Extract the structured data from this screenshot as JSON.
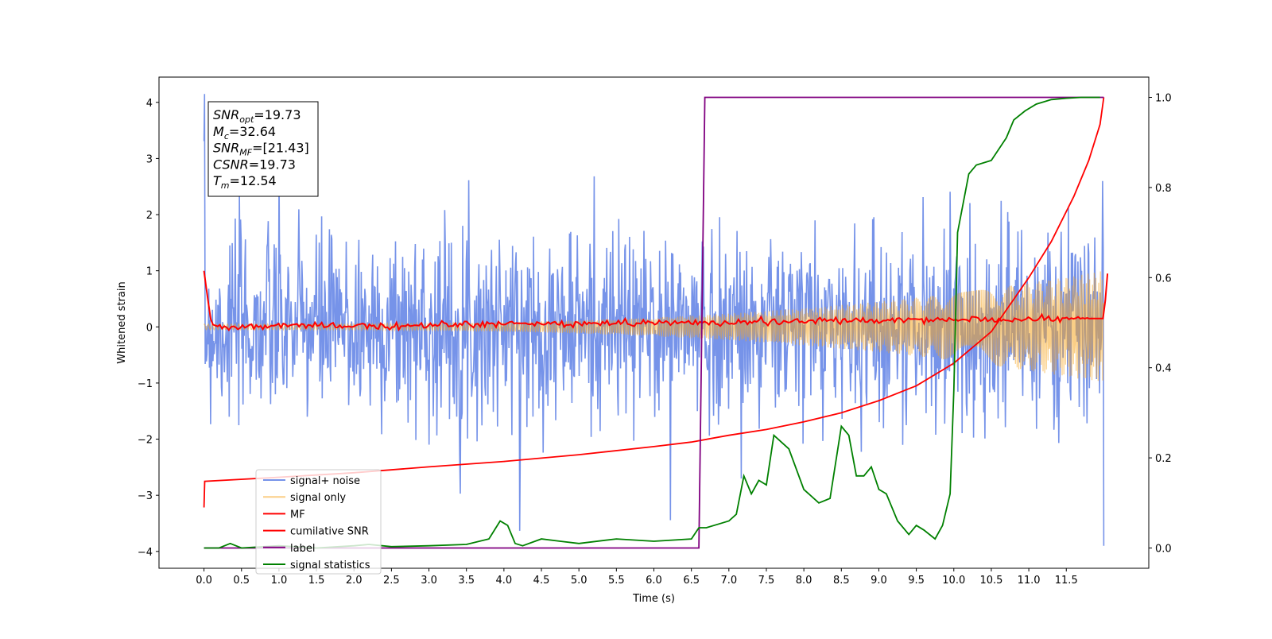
{
  "chart_data": {
    "type": "line",
    "xlabel": "Time (s)",
    "ylabel": "Whitened strain",
    "xlim": [
      -0.6,
      12.6
    ],
    "ylim": [
      -4.3,
      4.45
    ],
    "y2lim": [
      -0.045,
      1.045
    ],
    "x_ticks": [
      "0.0",
      "0.5",
      "1.0",
      "1.5",
      "2.0",
      "2.5",
      "3.0",
      "3.5",
      "4.0",
      "4.5",
      "5.0",
      "5.5",
      "6.0",
      "6.5",
      "7.0",
      "7.5",
      "8.0",
      "8.5",
      "9.0",
      "9.5",
      "10.0",
      "10.5",
      "11.0",
      "11.5"
    ],
    "y_ticks": [
      "−4",
      "−3",
      "−2",
      "−1",
      "0",
      "1",
      "2",
      "3",
      "4"
    ],
    "y2_ticks": [
      "0.0",
      "0.2",
      "0.4",
      "0.6",
      "0.8",
      "1.0"
    ],
    "annotation": [
      {
        "base": "SNR",
        "sub": "opt",
        "value": "=19.73"
      },
      {
        "base": "M",
        "sub": "c",
        "value": "=32.64"
      },
      {
        "base": "SNR",
        "sub": "MF",
        "value": "=[21.43]"
      },
      {
        "base": "CSNR",
        "sub": "",
        "value": "=19.73"
      },
      {
        "base": "T",
        "sub": "m",
        "value": "=12.54"
      }
    ],
    "series": [
      {
        "name": "signal+ noise",
        "color": "#4169e1",
        "axis": "left",
        "sigma": 0.85,
        "x_range": [
          0,
          12
        ]
      },
      {
        "name": "signal only",
        "color": "#f5a623",
        "axis": "left",
        "amplitude_start": 0.05,
        "amplitude_end": 1.0,
        "x_range": [
          0,
          12
        ]
      },
      {
        "name": "MF",
        "color": "#ff0000",
        "axis": "left",
        "x": [
          0.0,
          0.05,
          0.1,
          0.2,
          12.0,
          12.05
        ],
        "y": [
          1.0,
          0.5,
          0.05,
          0.0,
          0.15,
          0.95
        ]
      },
      {
        "name": "cumilative SNR",
        "color": "#ff0000",
        "axis": "right",
        "x": [
          0.0,
          0.01,
          1.0,
          2.0,
          3.0,
          4.0,
          5.0,
          6.0,
          6.5,
          7.0,
          7.5,
          8.0,
          8.5,
          9.0,
          9.5,
          10.0,
          10.5,
          11.0,
          11.3,
          11.6,
          11.8,
          11.95,
          12.0
        ],
        "y": [
          0.09,
          0.148,
          0.157,
          0.167,
          0.18,
          0.192,
          0.207,
          0.225,
          0.235,
          0.25,
          0.263,
          0.28,
          0.3,
          0.327,
          0.36,
          0.41,
          0.48,
          0.6,
          0.68,
          0.78,
          0.86,
          0.94,
          1.0
        ]
      },
      {
        "name": "label",
        "color": "#800080",
        "axis": "right",
        "x": [
          0.0,
          6.6,
          6.68,
          12.0
        ],
        "y": [
          0.0,
          0.0,
          1.0,
          1.0
        ]
      },
      {
        "name": "signal statistics",
        "color": "#008000",
        "axis": "right",
        "x": [
          0.0,
          0.2,
          0.35,
          0.5,
          1.0,
          1.5,
          2.0,
          2.2,
          2.5,
          3.0,
          3.5,
          3.8,
          3.95,
          4.05,
          4.15,
          4.25,
          4.5,
          4.75,
          5.0,
          5.5,
          6.0,
          6.5,
          6.6,
          6.7,
          6.9,
          7.0,
          7.1,
          7.2,
          7.3,
          7.4,
          7.5,
          7.6,
          7.8,
          8.0,
          8.2,
          8.35,
          8.5,
          8.6,
          8.7,
          8.8,
          8.9,
          9.0,
          9.1,
          9.25,
          9.4,
          9.5,
          9.6,
          9.75,
          9.85,
          9.95,
          10.0,
          10.05,
          10.2,
          10.3,
          10.5,
          10.7,
          10.8,
          10.95,
          11.1,
          11.3,
          11.5,
          11.7,
          11.95
        ],
        "y": [
          0.0,
          0.0,
          0.01,
          0.0,
          0.005,
          0.0,
          0.005,
          0.008,
          0.003,
          0.005,
          0.008,
          0.02,
          0.06,
          0.05,
          0.01,
          0.005,
          0.02,
          0.015,
          0.01,
          0.02,
          0.015,
          0.02,
          0.045,
          0.045,
          0.055,
          0.06,
          0.075,
          0.16,
          0.12,
          0.15,
          0.14,
          0.25,
          0.22,
          0.13,
          0.1,
          0.11,
          0.27,
          0.25,
          0.16,
          0.16,
          0.18,
          0.13,
          0.12,
          0.06,
          0.03,
          0.05,
          0.04,
          0.02,
          0.05,
          0.12,
          0.35,
          0.7,
          0.83,
          0.85,
          0.86,
          0.91,
          0.95,
          0.97,
          0.985,
          0.995,
          0.998,
          1.0,
          1.0
        ]
      }
    ],
    "legend": [
      "signal+ noise",
      "signal only",
      "MF",
      "cumilative SNR",
      "label",
      "signal statistics"
    ],
    "legend_loc": "lower-left",
    "grid": false
  }
}
